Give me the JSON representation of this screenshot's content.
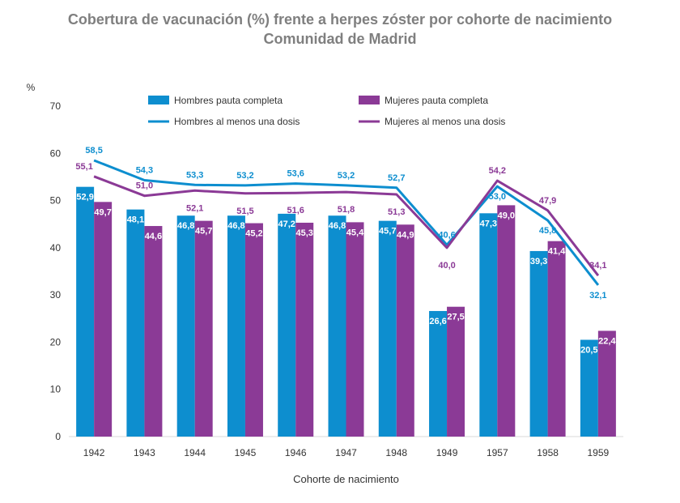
{
  "chart_data": {
    "type": "bar",
    "title": "Cobertura de vacunación (%) frente a herpes zóster por cohorte de nacimiento",
    "subtitle": "Comunidad de Madrid",
    "xlabel": "Cohorte de nacimiento",
    "ylabel": "%",
    "ylim": [
      0,
      70
    ],
    "yticks": [
      "0",
      "10",
      "20",
      "30",
      "40",
      "50",
      "60",
      "70"
    ],
    "grid": false,
    "legend_position": "top",
    "categories": [
      "1942",
      "1943",
      "1944",
      "1945",
      "1946",
      "1947",
      "1948",
      "1949",
      "1957",
      "1958",
      "1959"
    ],
    "series": [
      {
        "name": "Hombres pauta completa",
        "kind": "bar",
        "color": "#0d8ecf",
        "values": [
          52.9,
          48.1,
          46.8,
          46.8,
          47.2,
          46.8,
          45.7,
          26.6,
          47.3,
          39.3,
          20.5
        ],
        "labels": [
          "52,9",
          "48,1",
          "46,8",
          "46,8",
          "47,2",
          "46,8",
          "45,7",
          "26,6",
          "47,3",
          "39,3",
          "20,5"
        ]
      },
      {
        "name": "Mujeres pauta completa",
        "kind": "bar",
        "color": "#8b3a96",
        "values": [
          49.7,
          44.6,
          45.7,
          45.2,
          45.3,
          45.4,
          44.9,
          27.5,
          49.0,
          41.4,
          22.4
        ],
        "labels": [
          "49,7",
          "44,6",
          "45,7",
          "45,2",
          "45,3",
          "45,4",
          "44,9",
          "27,5",
          "49,0",
          "41,4",
          "22,4"
        ]
      },
      {
        "name": "Hombres al menos una dosis",
        "kind": "line",
        "color": "#0d8ecf",
        "values": [
          58.5,
          54.3,
          53.3,
          53.2,
          53.6,
          53.2,
          52.7,
          40.6,
          53.0,
          45.8,
          32.1
        ],
        "labels": [
          "58,5",
          "54,3",
          "53,3",
          "53,2",
          "53,6",
          "53,2",
          "52,7",
          "40,6",
          "53,0",
          "45,8",
          "32,1"
        ]
      },
      {
        "name": "Mujeres al menos una dosis",
        "kind": "line",
        "color": "#8b3a96",
        "values": [
          55.1,
          51.0,
          52.1,
          51.5,
          51.6,
          51.8,
          51.3,
          40.0,
          54.2,
          47.9,
          34.1
        ],
        "labels": [
          "55,1",
          "51,0",
          "52,1",
          "51,5",
          "51,6",
          "51,8",
          "51,3",
          "40,0",
          "54,2",
          "47,9",
          "34,1"
        ]
      }
    ]
  }
}
